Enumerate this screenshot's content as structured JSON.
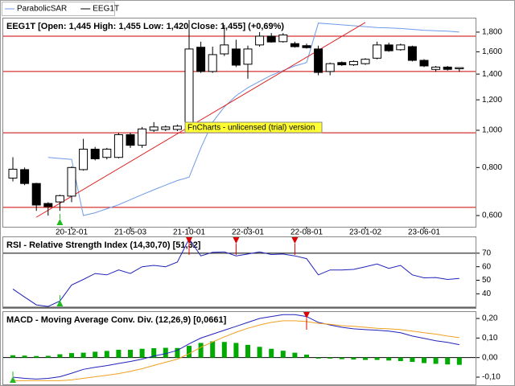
{
  "chart_data": [
    {
      "type": "candlestick",
      "name": "EEG1T",
      "color": "#000000",
      "title": "EEG1T [Open: 1,445  High: 1,455  Low: 1,420  Close: 1,455] (+0,69%)",
      "categories": [
        null,
        null,
        null,
        null,
        null,
        "20-12-01",
        null,
        null,
        null,
        null,
        "21-05-03",
        null,
        null,
        null,
        null,
        "21-10-01",
        null,
        null,
        null,
        null,
        "22-03-01",
        null,
        null,
        null,
        null,
        "22-08-01",
        null,
        null,
        null,
        null,
        "23-01-02",
        null,
        null,
        null,
        null,
        "23-06-01",
        null,
        null,
        null
      ],
      "open": [
        751,
        790,
        727,
        645,
        651,
        674,
        790,
        893,
        850,
        850,
        974,
        914,
        1000,
        1005,
        1005,
        1008,
        1644,
        1422,
        1580,
        1627,
        1485,
        1667,
        1757,
        1700,
        1680,
        1660,
        1627,
        1422,
        1500,
        1480,
        1490,
        1540,
        1667,
        1620,
        1650,
        1520,
        1440,
        1460,
        1445
      ],
      "high": [
        851,
        800,
        730,
        650,
        680,
        805,
        950,
        905,
        900,
        985,
        985,
        1020,
        1050,
        1030,
        1035,
        1935,
        1700,
        1650,
        1880,
        1720,
        1660,
        1800,
        1790,
        1790,
        1700,
        1680,
        1660,
        1500,
        1510,
        1520,
        1540,
        1700,
        1690,
        1680,
        1660,
        1530,
        1470,
        1470,
        1455
      ],
      "low": [
        736,
        720,
        617,
        600,
        617,
        650,
        785,
        835,
        840,
        845,
        900,
        900,
        990,
        995,
        995,
        990,
        1410,
        1410,
        1560,
        1460,
        1362,
        1650,
        1690,
        1690,
        1640,
        1630,
        1390,
        1390,
        1470,
        1470,
        1480,
        1530,
        1600,
        1610,
        1510,
        1460,
        1420,
        1430,
        1420
      ],
      "close": [
        792,
        727,
        639,
        633,
        676,
        800,
        893,
        843,
        893,
        974,
        914,
        1008,
        1020,
        1020,
        1025,
        1627,
        1422,
        1573,
        1667,
        1477,
        1627,
        1757,
        1697,
        1770,
        1650,
        1640,
        1414,
        1490,
        1480,
        1510,
        1530,
        1667,
        1610,
        1667,
        1520,
        1470,
        1460,
        1440,
        1455
      ],
      "series": [
        {
          "name": "ParabolicSAR",
          "color": "#6f9be8",
          "values": [
            null,
            null,
            null,
            850,
            845,
            840,
            600,
            610,
            625,
            640,
            660,
            680,
            700,
            720,
            740,
            755,
            900,
            1050,
            1150,
            1230,
            1290,
            1340,
            1390,
            1430,
            1470,
            1500,
            1900,
            1890,
            1880,
            1870,
            1860,
            1850,
            1845,
            1840,
            1830,
            1820,
            1815,
            1810,
            1800
          ]
        }
      ],
      "levels": [
        1757,
        1422,
        985,
        630
      ],
      "level_color": "#cc0000",
      "trendline": [
        [
          2,
          594
        ],
        [
          30,
          1907
        ]
      ],
      "annotation": "FnCharts - unlicensed (trial) version",
      "buy_signals": [
        4
      ],
      "log_scale": true,
      "ylim": [
        561,
        1953
      ],
      "yticks": [
        {
          "value": 600,
          "label": "0,600"
        },
        {
          "value": 800,
          "label": "0,800"
        },
        {
          "value": 1000,
          "label": "1,000"
        },
        {
          "value": 1200,
          "label": "1,200"
        },
        {
          "value": 1400,
          "label": "1,400"
        },
        {
          "value": 1600,
          "label": "1,600"
        },
        {
          "value": 1800,
          "label": "1,800"
        }
      ]
    },
    {
      "type": "line",
      "title": "RSI - Relative Strength Index (14,30,70) [51,32]",
      "series": [
        {
          "color": "#2222bb",
          "values": [
            43.5,
            37.6,
            31.8,
            30.6,
            34.7,
            46.5,
            50.6,
            55,
            54,
            57.6,
            55,
            60,
            61,
            60,
            63.5,
            80.6,
            68,
            70.6,
            71,
            68,
            69.4,
            71,
            69,
            69.4,
            68,
            66,
            54,
            57.6,
            57.6,
            58,
            60,
            62,
            58.8,
            61,
            54,
            51.8,
            52,
            50.6,
            51.3
          ]
        }
      ],
      "levels": [
        70,
        30
      ],
      "level_color": "#000000",
      "sell_signals": [
        15,
        19,
        24
      ],
      "buy_signals": [
        4
      ],
      "ylim": [
        29.5,
        81.8
      ],
      "yticks": [
        40,
        50,
        60,
        70
      ]
    },
    {
      "type": "macd",
      "title": "MACD - Moving Average Conv. Div. (12,26,9) [0,0661]",
      "series": [
        {
          "color": "#2222bb",
          "values": [
            -0.1,
            -0.106,
            -0.11,
            -0.106,
            -0.098,
            -0.08,
            -0.06,
            -0.05,
            -0.041,
            -0.03,
            -0.02,
            -0.008,
            0.008,
            0.02,
            0.037,
            0.07,
            0.1,
            0.12,
            0.14,
            0.16,
            0.18,
            0.2,
            0.21,
            0.22,
            0.22,
            0.21,
            0.18,
            0.167,
            0.155,
            0.147,
            0.143,
            0.14,
            0.135,
            0.127,
            0.11,
            0.098,
            0.086,
            0.078,
            0.066
          ]
        },
        {
          "color": "#f0a020",
          "values": [
            -0.118,
            -0.118,
            -0.118,
            -0.118,
            -0.118,
            -0.114,
            -0.106,
            -0.098,
            -0.09,
            -0.082,
            -0.07,
            -0.057,
            -0.04,
            -0.024,
            -0.008,
            0.02,
            0.053,
            0.08,
            0.106,
            0.13,
            0.15,
            0.167,
            0.18,
            0.188,
            0.188,
            0.184,
            0.175,
            0.17,
            0.163,
            0.16,
            0.155,
            0.15,
            0.147,
            0.143,
            0.135,
            0.127,
            0.12,
            0.11,
            0.102
          ]
        }
      ],
      "histogram": {
        "color": "#00aa00",
        "values": [
          0.012,
          0.01,
          0.008,
          0.009,
          0.017,
          0.023,
          0.025,
          0.03,
          0.034,
          0.04,
          0.04,
          0.045,
          0.048,
          0.05,
          0.049,
          0.06,
          0.075,
          0.083,
          0.08,
          0.075,
          0.065,
          0.055,
          0.045,
          0.035,
          0.025,
          0.015,
          -0.005,
          -0.005,
          -0.008,
          -0.01,
          -0.012,
          -0.012,
          -0.015,
          -0.018,
          -0.022,
          -0.028,
          -0.032,
          -0.035,
          -0.037
        ]
      },
      "levels": [
        0
      ],
      "level_color": "#000000",
      "sell_signals": [
        25
      ],
      "buy_signals": [
        0
      ],
      "ylim": [
        -0.137,
        0.233
      ],
      "yticks": [
        {
          "value": -0.1,
          "label": "-0,10"
        },
        {
          "value": 0,
          "label": "0,00"
        },
        {
          "value": 0.1,
          "label": "0,10"
        },
        {
          "value": 0.2,
          "label": "0,20"
        }
      ]
    }
  ]
}
